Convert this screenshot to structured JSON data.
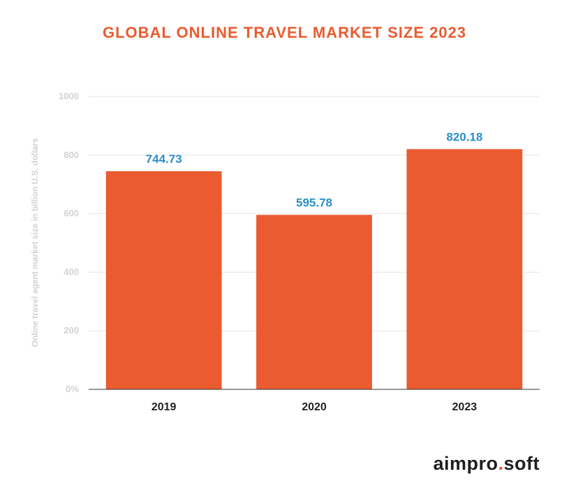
{
  "colors": {
    "title": "#ea5b2f",
    "bar": "#ea5b2f",
    "data_label": "#2a8fc8",
    "grid": "#e6e6e6",
    "axis": "#333333",
    "tick": "#d2d2d2"
  },
  "chart_data": {
    "type": "bar",
    "title": "GLOBAL ONLINE TRAVEL MARKET SIZE 2023",
    "ylabel": "Online travel agent market size in billion U.S. dollars",
    "xlabel": "",
    "categories": [
      "2019",
      "2020",
      "2023"
    ],
    "values": [
      744.73,
      595.78,
      820.18
    ],
    "value_labels": [
      "744.73",
      "595.78",
      "820.18"
    ],
    "ylim": [
      0,
      1000
    ],
    "yticks": [
      0,
      200,
      400,
      600,
      800,
      1000
    ],
    "ytick_labels": [
      "0%",
      "200",
      "400",
      "600",
      "800",
      "1000"
    ],
    "grid": true,
    "legend": "none"
  },
  "logo": {
    "part1": "aimpro",
    "dot": ".",
    "part2": "soft"
  }
}
